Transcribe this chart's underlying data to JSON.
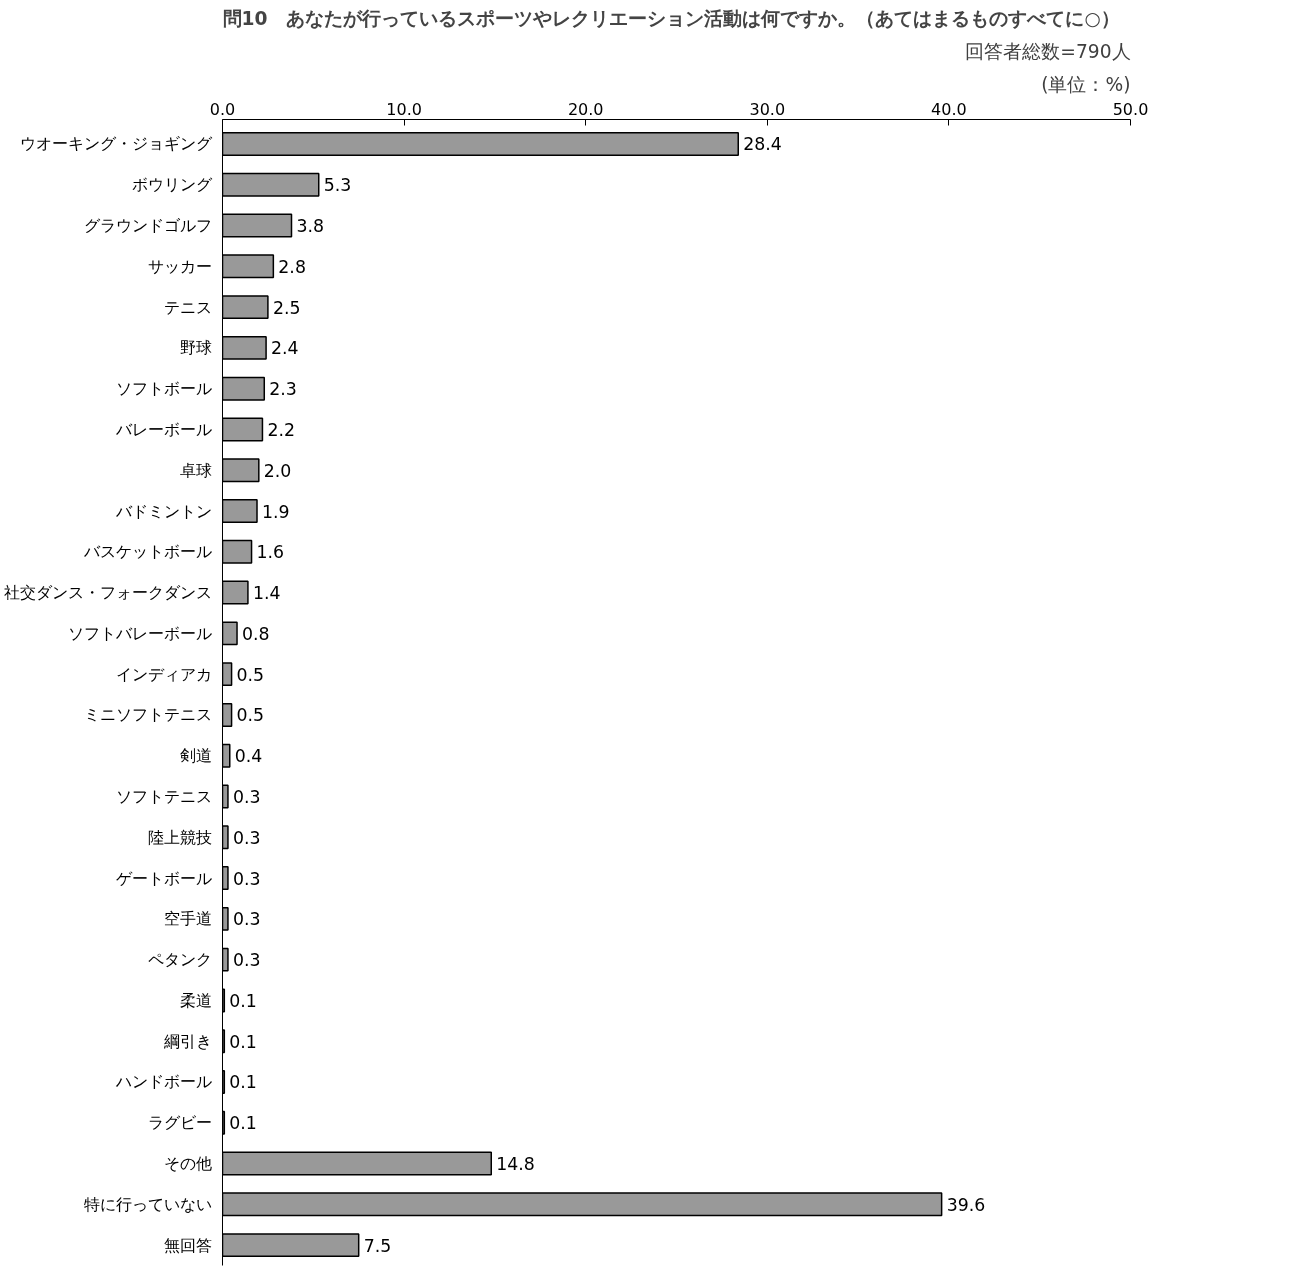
{
  "chart_data": {
    "type": "bar",
    "orientation": "horizontal",
    "title": "問10　あなたが行っているスポーツやレクリエーション活動は何ですか。（あてはまるものすべてに○）",
    "categories": [
      "ウオーキング・ジョギング",
      "ボウリング",
      "グラウンドゴルフ",
      "サッカー",
      "テニス",
      "野球",
      "ソフトボール",
      "バレーボール",
      "卓球",
      "バドミントン",
      "バスケットボール",
      "社交ダンス・フォークダンス",
      "ソフトバレーボール",
      "インディアカ",
      "ミニソフトテニス",
      "剣道",
      "ソフトテニス",
      "陸上競技",
      "ゲートボール",
      "空手道",
      "ペタンク",
      "柔道",
      "綱引き",
      "ハンドボール",
      "ラグビー",
      "その他",
      "特に行っていない",
      "無回答"
    ],
    "values": [
      28.4,
      5.3,
      3.8,
      2.8,
      2.5,
      2.4,
      2.3,
      2.2,
      2.0,
      1.9,
      1.6,
      1.4,
      0.8,
      0.5,
      0.5,
      0.4,
      0.3,
      0.3,
      0.3,
      0.3,
      0.3,
      0.1,
      0.1,
      0.1,
      0.1,
      14.8,
      39.6,
      7.5
    ],
    "value_labels": [
      "28.4",
      "5.3",
      "3.8",
      "2.8",
      "2.5",
      "2.4",
      "2.3",
      "2.2",
      "2.0",
      "1.9",
      "1.6",
      "1.4",
      "0.8",
      "0.5",
      "0.5",
      "0.4",
      "0.3",
      "0.3",
      "0.3",
      "0.3",
      "0.3",
      "0.1",
      "0.1",
      "0.1",
      "0.1",
      "14.8",
      "39.6",
      "7.5"
    ],
    "color": "#999999",
    "xlim": [
      0,
      50
    ],
    "xticks": [
      {
        "value": 0,
        "label": "0.0"
      },
      {
        "value": 10,
        "label": "10.0"
      },
      {
        "value": 20,
        "label": "20.0"
      },
      {
        "value": 30,
        "label": "30.0"
      },
      {
        "value": 40,
        "label": "40.0"
      },
      {
        "value": 50,
        "label": "50.0"
      }
    ],
    "annotations": [
      "回答者総数=790人",
      "(単位：%)"
    ],
    "grid": false
  }
}
